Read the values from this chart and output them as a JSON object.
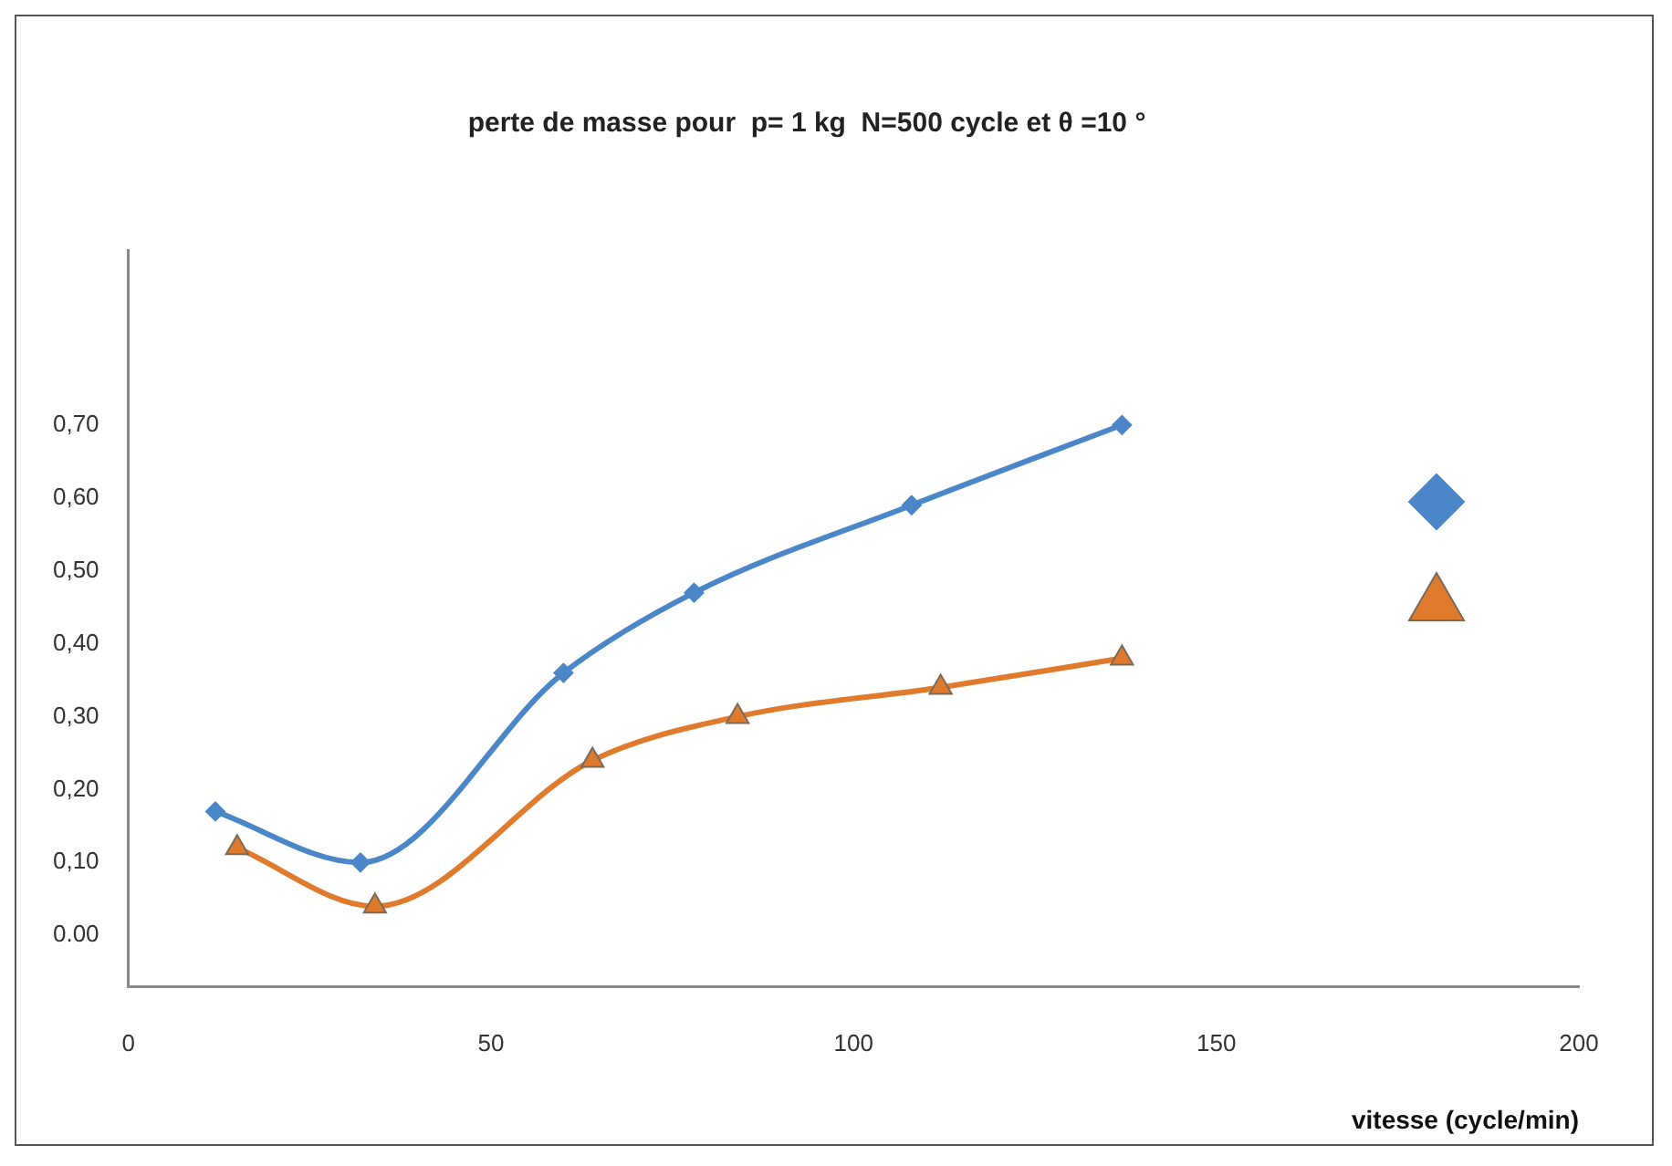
{
  "chart_data": {
    "type": "line",
    "title": "perte de masse pour  p= 1 kg  N=500 cycle et θ =10 °",
    "xlabel": "vitesse (cycle/min)",
    "xlim": [
      0,
      200
    ],
    "xticks": [
      0,
      50,
      100,
      150,
      200
    ],
    "ylim": [
      -0.07,
      0.94
    ],
    "yticks": [
      {
        "value": 0,
        "label": "0.00"
      },
      {
        "value": 0.1,
        "label": "0,10"
      },
      {
        "value": 0.2,
        "label": "0,20"
      },
      {
        "value": 0.3,
        "label": "0,30"
      },
      {
        "value": 0.4,
        "label": "0,40"
      },
      {
        "value": 0.5,
        "label": "0,50"
      },
      {
        "value": 0.6,
        "label": "0,60"
      },
      {
        "value": 0.7,
        "label": "0,70"
      }
    ],
    "grid": false,
    "series": [
      {
        "color": "#4a86c8",
        "marker": "diamond",
        "x": [
          12,
          32,
          60,
          78,
          108,
          137
        ],
        "values": [
          0.17,
          0.1,
          0.36,
          0.47,
          0.59,
          0.7
        ]
      },
      {
        "color": "#e07b2e",
        "marker": "triangle",
        "x": [
          15,
          34,
          64,
          84,
          112,
          137
        ],
        "values": [
          0.12,
          0.04,
          0.24,
          0.3,
          0.34,
          0.38
        ]
      }
    ]
  }
}
